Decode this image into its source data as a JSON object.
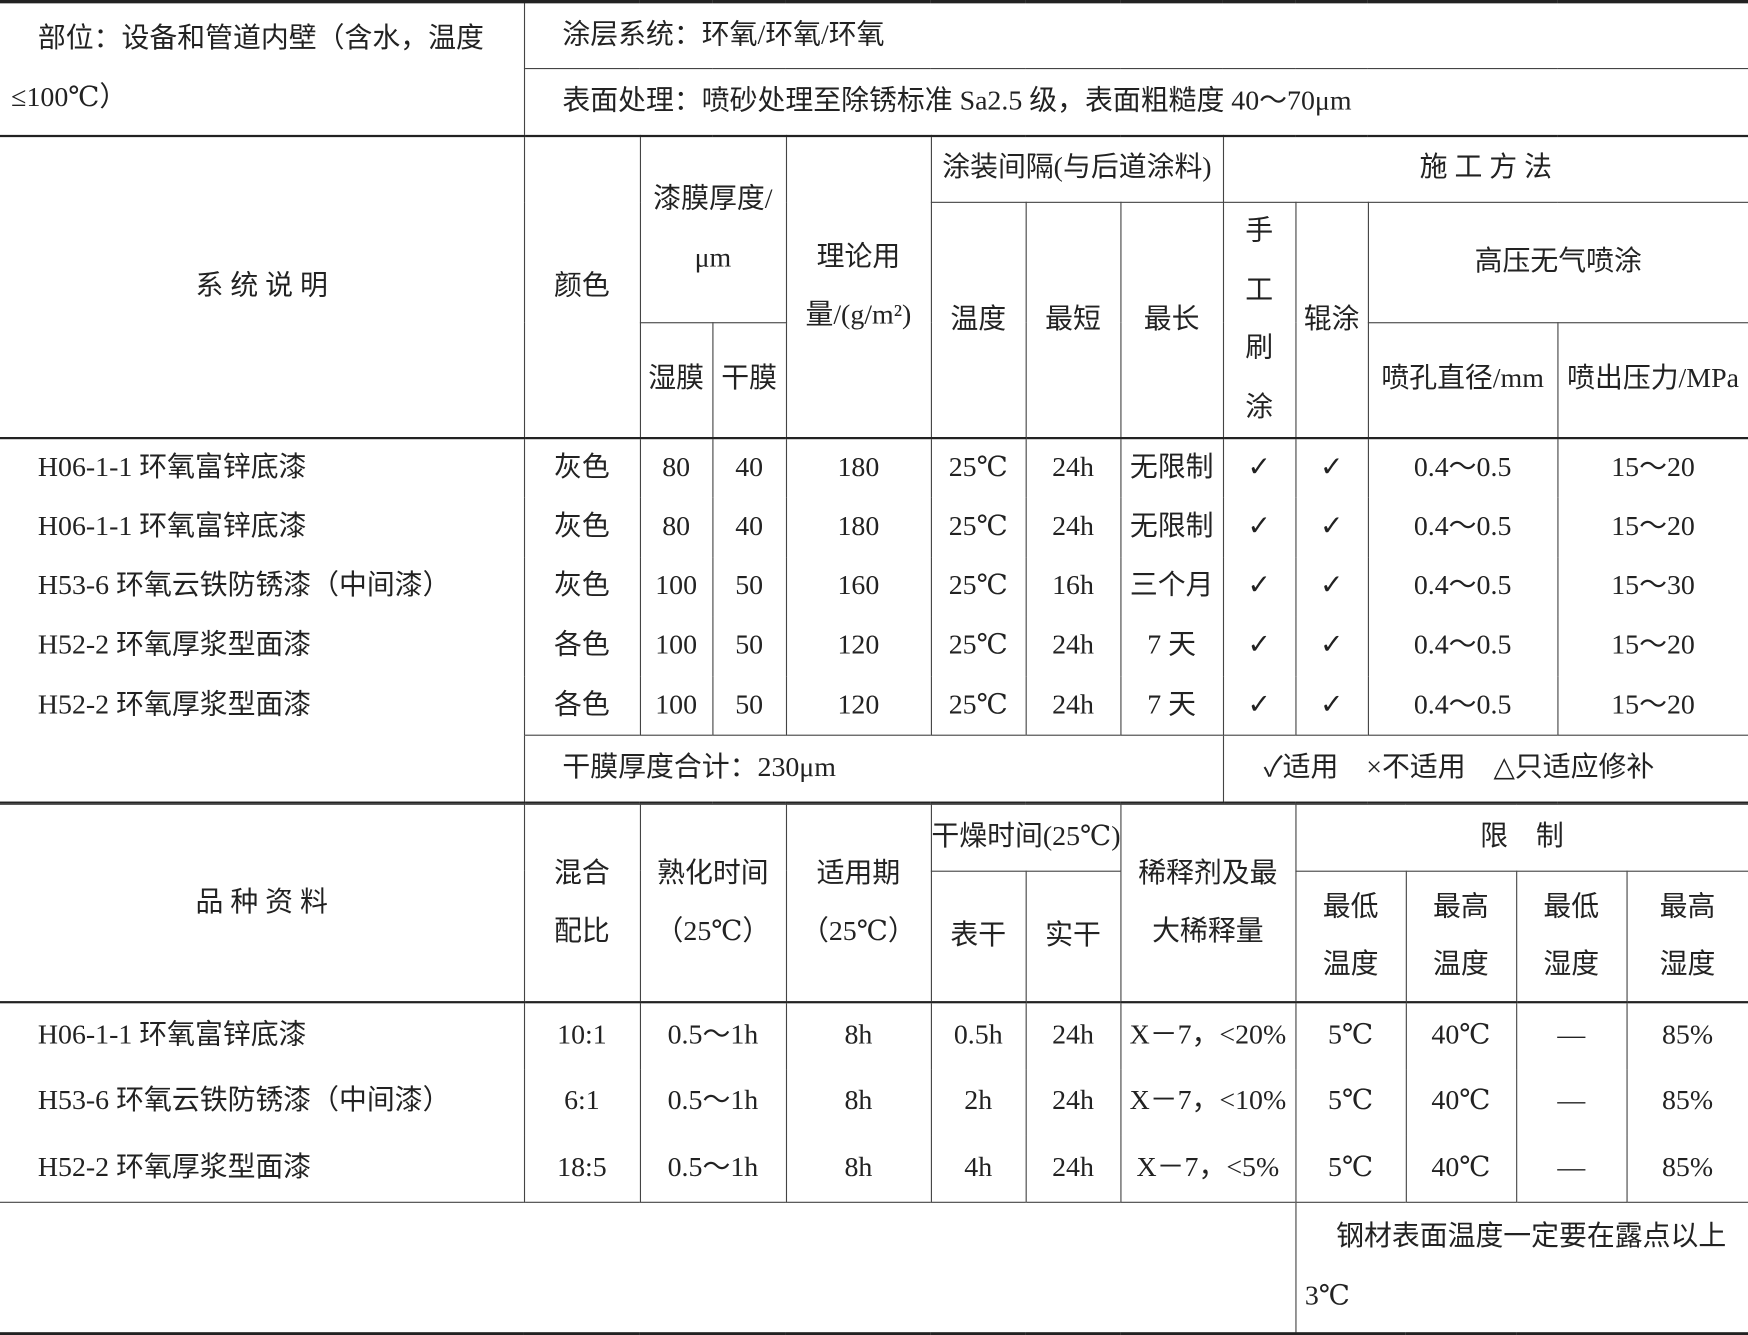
{
  "system": {
    "location": "部位：设备和管道内壁（含水，温度≤100℃）",
    "coating_system": "涂层系统：环氧/环氧/环氧",
    "surface_treatment": "表面处理：喷砂处理至除锈标准 Sa2.5 级，表面粗糙度 40～70μm"
  },
  "table1": {
    "headers": {
      "desc": "系 统 说 明",
      "color": "颜色",
      "thickness": "漆膜厚度/μm",
      "wet": "湿膜",
      "dry": "干膜",
      "usage": "理论用量/(g/m²)",
      "interval": "涂装间隔(与后道涂料)",
      "temp": "温度",
      "min": "最短",
      "max": "最长",
      "method": "施 工 方 法",
      "brush": "手工刷涂",
      "roller": "辊涂",
      "airless": "高压无气喷涂",
      "nozzle": "喷孔直径/mm",
      "pressure": "喷出压力/MPa"
    },
    "rows": [
      [
        "H06-1-1 环氧富锌底漆",
        "灰色",
        "80",
        "40",
        "180",
        "25℃",
        "24h",
        "无限制",
        "✓",
        "✓",
        "0.4～0.5",
        "15～20"
      ],
      [
        "H06-1-1 环氧富锌底漆",
        "灰色",
        "80",
        "40",
        "180",
        "25℃",
        "24h",
        "无限制",
        "✓",
        "✓",
        "0.4～0.5",
        "15～20"
      ],
      [
        "H53-6 环氧云铁防锈漆（中间漆）",
        "灰色",
        "100",
        "50",
        "160",
        "25℃",
        "16h",
        "三个月",
        "✓",
        "✓",
        "0.4～0.5",
        "15～30"
      ],
      [
        "H52-2 环氧厚浆型面漆",
        "各色",
        "100",
        "50",
        "120",
        "25℃",
        "24h",
        "7 天",
        "✓",
        "✓",
        "0.4～0.5",
        "15～20"
      ],
      [
        "H52-2 环氧厚浆型面漆",
        "各色",
        "100",
        "50",
        "120",
        "25℃",
        "24h",
        "7 天",
        "✓",
        "✓",
        "0.4～0.5",
        "15～20"
      ]
    ],
    "total": "干膜厚度合计：230μm",
    "legend": "✓适用　×不适用　△只适应修补"
  },
  "table2": {
    "headers": {
      "product": "品 种 资 料",
      "mix": "混合配比",
      "cure": "熟化时间（25℃）",
      "potlife": "适用期（25℃）",
      "drying": "干燥时间(25℃)",
      "surface_dry": "表干",
      "hard_dry": "实干",
      "thinner": "稀释剂及最大稀释量",
      "limits": "限　制",
      "min_temp": "最低温度",
      "max_temp": "最高温度",
      "min_hum": "最低湿度",
      "max_hum": "最高湿度"
    },
    "rows": [
      [
        "H06-1-1 环氧富锌底漆",
        "10:1",
        "0.5～1h",
        "8h",
        "0.5h",
        "24h",
        "X－7，<20%",
        "5℃",
        "40℃",
        "—",
        "85%"
      ],
      [
        "H53-6 环氧云铁防锈漆（中间漆）",
        "6:1",
        "0.5～1h",
        "8h",
        "2h",
        "24h",
        "X－7，<10%",
        "5℃",
        "40℃",
        "—",
        "85%"
      ],
      [
        "H52-2 环氧厚浆型面漆",
        "18:5",
        "0.5～1h",
        "8h",
        "4h",
        "24h",
        "X－7，<5%",
        "5℃",
        "40℃",
        "—",
        "85%"
      ]
    ],
    "note": "钢材表面温度一定要在露点以上 3℃"
  }
}
